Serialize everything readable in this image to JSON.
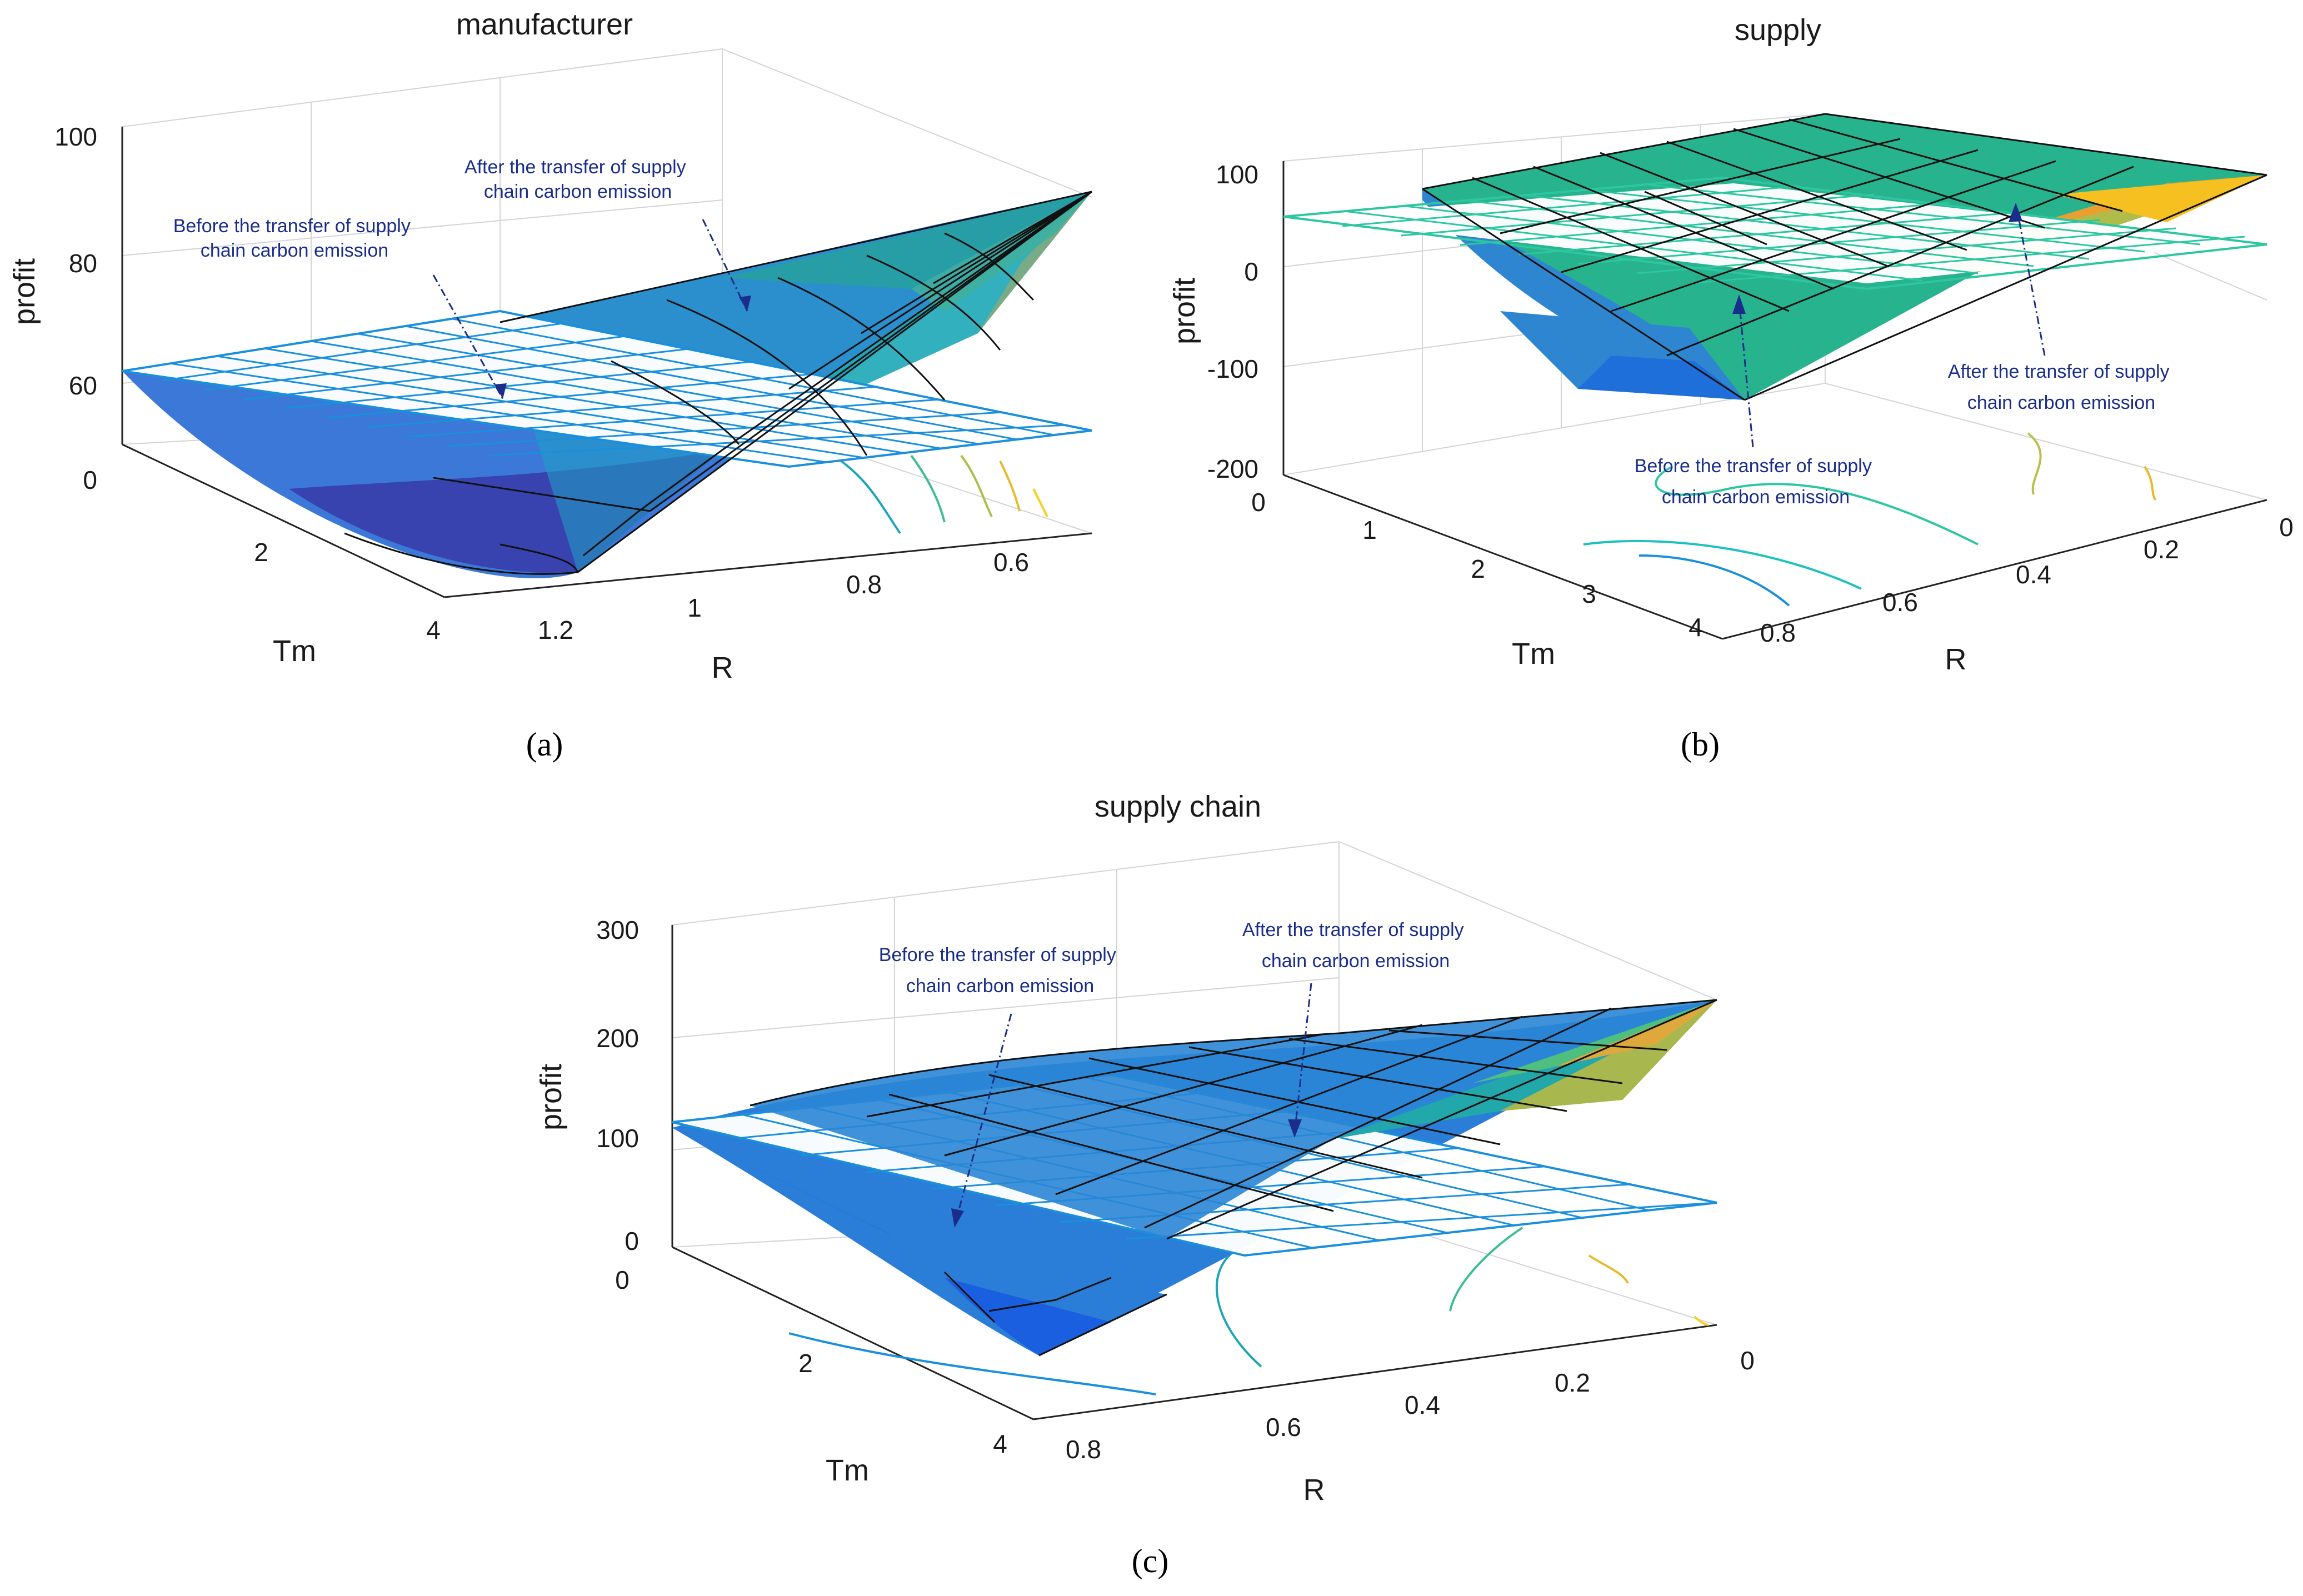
{
  "panels": [
    {
      "id": "a",
      "caption": "(a)",
      "title": "manufacturer",
      "annotations": [
        "Before the transfer of supply chain carbon emission",
        "After the transfer of supply chain carbon emission"
      ],
      "z_label": "profit",
      "x_label": "Tm",
      "y_label": "R",
      "z_ticks": [
        "0",
        "60",
        "80",
        "100"
      ],
      "x_ticks": [
        "2",
        "4"
      ],
      "y_ticks": [
        "1.2",
        "1",
        "0.8",
        "0.6"
      ]
    },
    {
      "id": "b",
      "caption": "(b)",
      "title": "supply",
      "annotations": [
        "Before the transfer of supply chain carbon emission",
        "After the transfer of supply chain carbon emission"
      ],
      "z_label": "profit",
      "x_label": "Tm",
      "y_label": "R",
      "z_ticks": [
        "100",
        "0",
        "-100",
        "-200"
      ],
      "x_ticks": [
        "0",
        "1",
        "2",
        "3",
        "4"
      ],
      "y_ticks": [
        "0.8",
        "0.6",
        "0.4",
        "0.2",
        "0"
      ]
    },
    {
      "id": "c",
      "caption": "(c)",
      "title": "supply chain",
      "annotations": [
        "Before the transfer of supply chain carbon emission",
        "After the transfer of supply chain carbon emission"
      ],
      "z_label": "profit",
      "x_label": "Tm",
      "y_label": "R",
      "z_ticks": [
        "300",
        "200",
        "100",
        "0"
      ],
      "x_ticks": [
        "0",
        "2",
        "4"
      ],
      "y_ticks": [
        "0.8",
        "0.6",
        "0.4",
        "0.2",
        "0"
      ]
    }
  ],
  "chart_data": [
    {
      "type": "surface",
      "title": "manufacturer",
      "xlabel": "Tm",
      "ylabel": "R",
      "zlabel": "profit",
      "xlim": [
        0,
        4
      ],
      "ylim": [
        0.5,
        1.2
      ],
      "zlim": [
        0,
        100
      ],
      "grid": true,
      "series": [
        {
          "name": "Before the transfer of supply chain carbon emission",
          "surface": "flat plane",
          "z_constant": 62
        },
        {
          "name": "After the transfer of supply chain carbon emission",
          "surface": "curved",
          "z_min": 48,
          "z_max": 90
        }
      ],
      "colormap": "parula"
    },
    {
      "type": "surface",
      "title": "supply",
      "xlabel": "Tm",
      "ylabel": "R",
      "zlabel": "profit",
      "xlim": [
        0,
        4
      ],
      "ylim": [
        0,
        0.8
      ],
      "zlim": [
        -200,
        120
      ],
      "grid": true,
      "series": [
        {
          "name": "Before the transfer of supply chain carbon emission",
          "surface": "flat plane",
          "z_constant": 50
        },
        {
          "name": "After the transfer of supply chain carbon emission",
          "surface": "curved",
          "z_min": -130,
          "z_max": 100
        }
      ],
      "colormap": "parula"
    },
    {
      "type": "surface",
      "title": "supply chain",
      "xlabel": "Tm",
      "ylabel": "R",
      "zlabel": "profit",
      "xlim": [
        0,
        4
      ],
      "ylim": [
        0,
        0.8
      ],
      "zlim": [
        0,
        300
      ],
      "grid": true,
      "series": [
        {
          "name": "Before the transfer of supply chain carbon emission",
          "surface": "flat plane",
          "z_constant": 110
        },
        {
          "name": "After the transfer of supply chain carbon emission",
          "surface": "curved",
          "z_min": 10,
          "z_max": 230
        }
      ],
      "colormap": "parula"
    }
  ]
}
